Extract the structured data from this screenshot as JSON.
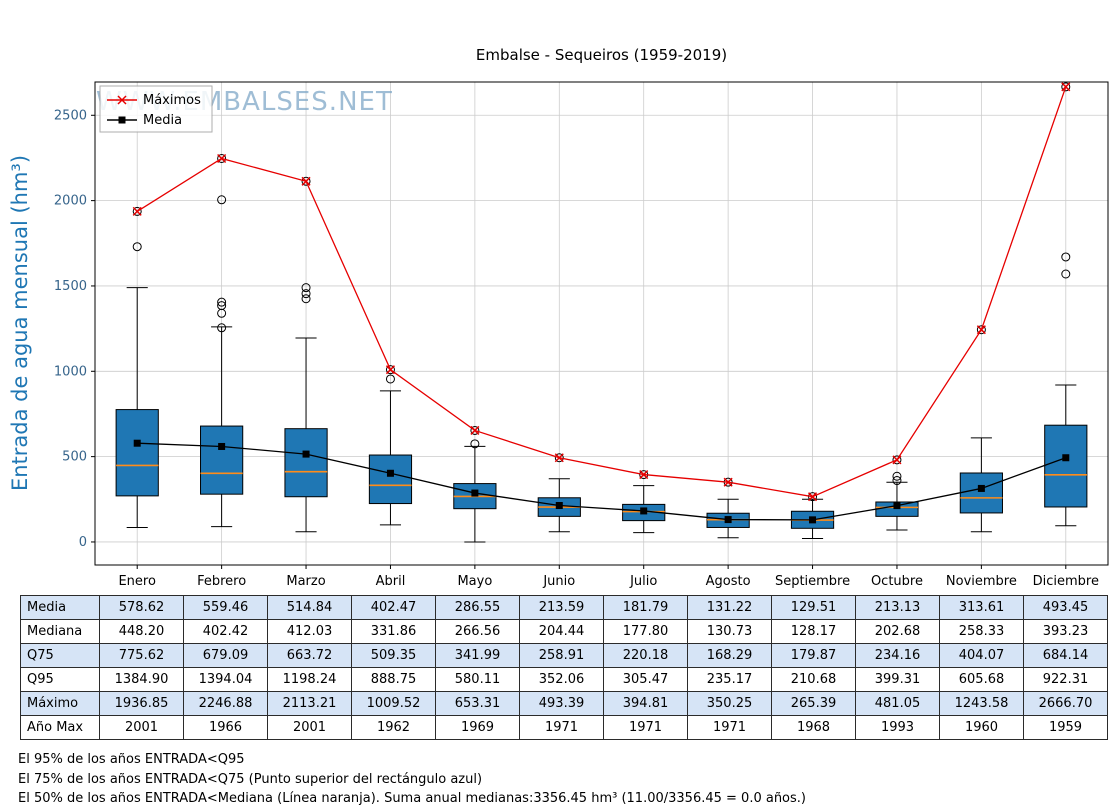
{
  "title": "Embalse - Sequeiros (1959-2019)",
  "ylabel": "Entrada de agua mensual (hm³)",
  "watermark": "WWW.EMBALSES.NET",
  "watermark_color": "#7fa8c8",
  "legend": {
    "maximos": "Máximos",
    "media": "Media"
  },
  "chart_data": {
    "type": "boxplot",
    "categories": [
      "Enero",
      "Febrero",
      "Marzo",
      "Abril",
      "Mayo",
      "Junio",
      "Julio",
      "Agosto",
      "Septiembre",
      "Octubre",
      "Noviembre",
      "Diciembre"
    ],
    "yticks": [
      0,
      500,
      1000,
      1500,
      2000,
      2500
    ],
    "ylim": [
      -135,
      2695
    ],
    "grid": true,
    "legend_position": "upper-left",
    "series": [
      {
        "name": "Máximos",
        "color": "#e60000",
        "marker": "x",
        "values": [
          1936.85,
          2246.88,
          2113.21,
          1009.52,
          653.31,
          493.39,
          394.81,
          350.25,
          265.39,
          481.05,
          1243.58,
          2666.7
        ]
      },
      {
        "name": "Media",
        "color": "#000000",
        "marker": "square",
        "values": [
          578.62,
          559.46,
          514.84,
          402.47,
          286.55,
          213.59,
          181.79,
          131.22,
          129.51,
          213.13,
          313.61,
          493.45
        ]
      }
    ],
    "boxes": [
      {
        "q1": 270,
        "median": 448.2,
        "q3": 775.62,
        "lo": 85,
        "hi": 1490,
        "outliers": [
          1730,
          1936.85
        ]
      },
      {
        "q1": 280,
        "median": 402.42,
        "q3": 679.09,
        "lo": 90,
        "hi": 1260,
        "outliers": [
          1255,
          1340,
          1385,
          1405,
          2005,
          2246.88
        ]
      },
      {
        "q1": 265,
        "median": 412.03,
        "q3": 663.72,
        "lo": 60,
        "hi": 1195,
        "outliers": [
          1425,
          1455,
          1490,
          2113.21
        ]
      },
      {
        "q1": 225,
        "median": 331.86,
        "q3": 509.35,
        "lo": 100,
        "hi": 885,
        "outliers": [
          955,
          1009.52
        ]
      },
      {
        "q1": 195,
        "median": 266.56,
        "q3": 341.99,
        "lo": 0,
        "hi": 560,
        "outliers": [
          575,
          653.31
        ]
      },
      {
        "q1": 150,
        "median": 204.44,
        "q3": 258.91,
        "lo": 60,
        "hi": 370,
        "outliers": [
          493.39
        ]
      },
      {
        "q1": 125,
        "median": 177.8,
        "q3": 220.18,
        "lo": 55,
        "hi": 330,
        "outliers": [
          394.81
        ]
      },
      {
        "q1": 85,
        "median": 130.73,
        "q3": 168.29,
        "lo": 25,
        "hi": 250,
        "outliers": [
          350.25
        ]
      },
      {
        "q1": 80,
        "median": 128.17,
        "q3": 179.87,
        "lo": 20,
        "hi": 250,
        "outliers": [
          265.39
        ]
      },
      {
        "q1": 150,
        "median": 202.68,
        "q3": 234.16,
        "lo": 70,
        "hi": 350,
        "outliers": [
          360,
          385,
          481.05
        ]
      },
      {
        "q1": 170,
        "median": 258.33,
        "q3": 404.07,
        "lo": 60,
        "hi": 610,
        "outliers": [
          1243.58
        ]
      },
      {
        "q1": 205,
        "median": 393.23,
        "q3": 684.14,
        "lo": 95,
        "hi": 920,
        "outliers": [
          1570,
          1670,
          2666.7
        ]
      }
    ],
    "colors": {
      "box_fill": "#1f77b4",
      "median": "#ff8c1a",
      "grid": "#cccccc",
      "tick_label": "#36648b"
    }
  },
  "table": {
    "rows": [
      {
        "label": "Media",
        "values": [
          "578.62",
          "559.46",
          "514.84",
          "402.47",
          "286.55",
          "213.59",
          "181.79",
          "131.22",
          "129.51",
          "213.13",
          "313.61",
          "493.45"
        ]
      },
      {
        "label": "Mediana",
        "values": [
          "448.20",
          "402.42",
          "412.03",
          "331.86",
          "266.56",
          "204.44",
          "177.80",
          "130.73",
          "128.17",
          "202.68",
          "258.33",
          "393.23"
        ]
      },
      {
        "label": "Q75",
        "values": [
          "775.62",
          "679.09",
          "663.72",
          "509.35",
          "341.99",
          "258.91",
          "220.18",
          "168.29",
          "179.87",
          "234.16",
          "404.07",
          "684.14"
        ]
      },
      {
        "label": "Q95",
        "values": [
          "1384.90",
          "1394.04",
          "1198.24",
          "888.75",
          "580.11",
          "352.06",
          "305.47",
          "235.17",
          "210.68",
          "399.31",
          "605.68",
          "922.31"
        ]
      },
      {
        "label": "Máximo",
        "values": [
          "1936.85",
          "2246.88",
          "2113.21",
          "1009.52",
          "653.31",
          "493.39",
          "394.81",
          "350.25",
          "265.39",
          "481.05",
          "1243.58",
          "2666.70"
        ]
      },
      {
        "label": "Año Max",
        "values": [
          "2001",
          "1966",
          "2001",
          "1962",
          "1969",
          "1971",
          "1971",
          "1971",
          "1968",
          "1993",
          "1960",
          "1959"
        ]
      }
    ]
  },
  "footer": [
    "El 95% de los años ENTRADA<Q95",
    "El 75% de los años ENTRADA<Q75 (Punto superior del rectángulo azul)",
    "El 50% de los años ENTRADA<Mediana (Línea naranja). Suma anual medianas:3356.45 hm³ (11.00/3356.45 = 0.0 años.)"
  ]
}
